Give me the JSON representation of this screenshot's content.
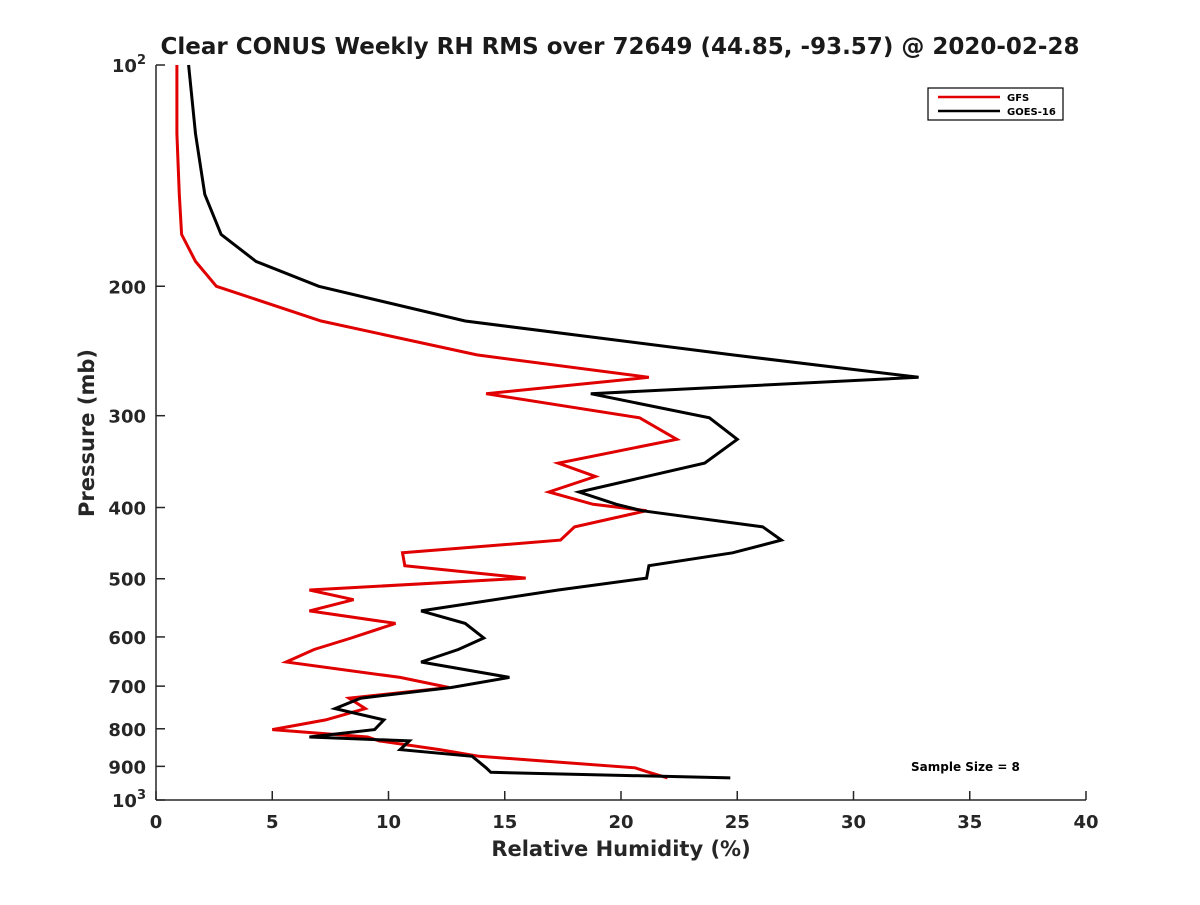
{
  "chart_data": {
    "type": "line",
    "title": "Clear CONUS Weekly RH RMS over 72649 (44.85, -93.57) @ 2020-02-28",
    "xlabel": "Relative Humidity (%)",
    "ylabel": "Pressure (mb)",
    "xlim": [
      0,
      40
    ],
    "ylim": [
      100,
      1000
    ],
    "yscale": "log",
    "y_reversed": true,
    "grid": false,
    "x_ticks": [
      {
        "value": 0,
        "label": "0"
      },
      {
        "value": 5,
        "label": "5"
      },
      {
        "value": 10,
        "label": "10"
      },
      {
        "value": 15,
        "label": "15"
      },
      {
        "value": 20,
        "label": "20"
      },
      {
        "value": 25,
        "label": "25"
      },
      {
        "value": 30,
        "label": "30"
      },
      {
        "value": 35,
        "label": "35"
      },
      {
        "value": 40,
        "label": "40"
      }
    ],
    "y_ticks": [
      {
        "value": 100,
        "base": "10",
        "exp": "2"
      },
      {
        "value": 200,
        "base": "200",
        "exp": ""
      },
      {
        "value": 300,
        "base": "300",
        "exp": ""
      },
      {
        "value": 400,
        "base": "400",
        "exp": ""
      },
      {
        "value": 500,
        "base": "500",
        "exp": ""
      },
      {
        "value": 600,
        "base": "600",
        "exp": ""
      },
      {
        "value": 700,
        "base": "700",
        "exp": ""
      },
      {
        "value": 800,
        "base": "800",
        "exp": ""
      },
      {
        "value": 900,
        "base": "900",
        "exp": ""
      },
      {
        "value": 1000,
        "base": "10",
        "exp": "3"
      }
    ],
    "legend": {
      "position": "top-right",
      "entries": [
        "GFS",
        "GOES-16"
      ]
    },
    "annotations": [
      {
        "text": "Sample Size = 8",
        "position": "bottom-right"
      }
    ],
    "series": [
      {
        "name": "GFS",
        "color": "#e00000",
        "points": [
          [
            0.9,
            100
          ],
          [
            0.9,
            124
          ],
          [
            1.0,
            150
          ],
          [
            1.1,
            170
          ],
          [
            1.7,
            185
          ],
          [
            2.6,
            200
          ],
          [
            7.1,
            223
          ],
          [
            13.8,
            248
          ],
          [
            21.2,
            266
          ],
          [
            14.2,
            280
          ],
          [
            20.8,
            302
          ],
          [
            22.4,
            323
          ],
          [
            17.3,
            348
          ],
          [
            18.9,
            363
          ],
          [
            16.9,
            381
          ],
          [
            18.8,
            396
          ],
          [
            21.1,
            404
          ],
          [
            18.0,
            425
          ],
          [
            17.4,
            443
          ],
          [
            10.6,
            461
          ],
          [
            10.7,
            480
          ],
          [
            15.9,
            499
          ],
          [
            6.6,
            518
          ],
          [
            8.5,
            534
          ],
          [
            6.6,
            553
          ],
          [
            10.3,
            575
          ],
          [
            8.4,
            602
          ],
          [
            6.8,
            624
          ],
          [
            5.6,
            649
          ],
          [
            10.5,
            681
          ],
          [
            12.6,
            703
          ],
          [
            8.3,
            727
          ],
          [
            9.0,
            751
          ],
          [
            7.3,
            778
          ],
          [
            5.0,
            802
          ],
          [
            9.1,
            821
          ],
          [
            9.6,
            831
          ],
          [
            12.2,
            854
          ],
          [
            13.9,
            872
          ],
          [
            20.6,
            904
          ],
          [
            21.2,
            917
          ],
          [
            22.0,
            933
          ]
        ]
      },
      {
        "name": "GOES-16",
        "color": "#000000",
        "points": [
          [
            1.4,
            100
          ],
          [
            1.7,
            124
          ],
          [
            2.1,
            150
          ],
          [
            2.8,
            170
          ],
          [
            4.3,
            185
          ],
          [
            7.0,
            200
          ],
          [
            13.3,
            223
          ],
          [
            24.8,
            248
          ],
          [
            32.8,
            266
          ],
          [
            18.7,
            280
          ],
          [
            23.8,
            302
          ],
          [
            25.0,
            323
          ],
          [
            23.6,
            348
          ],
          [
            18.2,
            381
          ],
          [
            19.8,
            396
          ],
          [
            20.9,
            404
          ],
          [
            26.1,
            425
          ],
          [
            26.9,
            443
          ],
          [
            24.8,
            461
          ],
          [
            21.2,
            480
          ],
          [
            21.1,
            499
          ],
          [
            17.3,
            518
          ],
          [
            11.4,
            553
          ],
          [
            13.3,
            575
          ],
          [
            14.1,
            602
          ],
          [
            13.0,
            624
          ],
          [
            11.4,
            649
          ],
          [
            15.2,
            681
          ],
          [
            12.7,
            703
          ],
          [
            8.8,
            727
          ],
          [
            7.7,
            751
          ],
          [
            9.8,
            778
          ],
          [
            9.4,
            802
          ],
          [
            6.6,
            821
          ],
          [
            10.9,
            831
          ],
          [
            10.5,
            854
          ],
          [
            13.6,
            872
          ],
          [
            14.2,
            904
          ],
          [
            14.4,
            917
          ],
          [
            24.7,
            933
          ]
        ]
      }
    ]
  }
}
